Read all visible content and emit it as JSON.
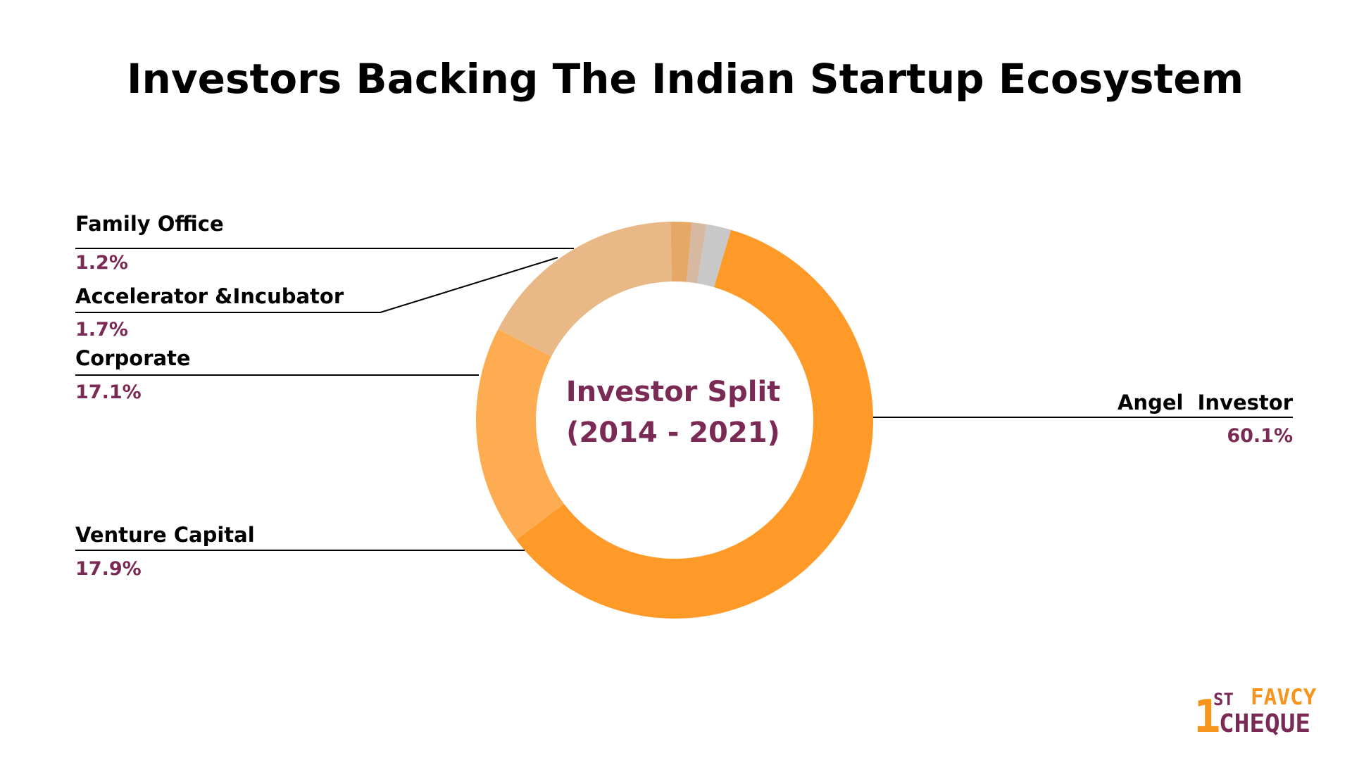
{
  "title": "Investors Backing The Indian Startup Ecosystem",
  "chart_data": {
    "type": "pie",
    "variant": "donut",
    "center_title": "Investor Split",
    "center_subtitle": "(2014 - 2021)",
    "legend": "leader-line labels",
    "slices": [
      {
        "label": "Angel  Investor",
        "value": 60.1,
        "value_label": "60.1%",
        "color": "#FF9A28",
        "label_side": "right"
      },
      {
        "label": "Venture Capital",
        "value": 17.9,
        "value_label": "17.9%",
        "color": "#FDAC52",
        "label_side": "left"
      },
      {
        "label": "Corporate",
        "value": 17.1,
        "value_label": "17.1%",
        "color": "#E8B986",
        "label_side": "left"
      },
      {
        "label": "Accelerator &Incubator",
        "value": 1.7,
        "value_label": "1.7%",
        "color": "#E6A866",
        "label_side": "left"
      },
      {
        "label": "Family Office",
        "value": 1.2,
        "value_label": "1.2%",
        "color": "#D6B9A0",
        "label_side": "left"
      },
      {
        "label": "",
        "value": 2.0,
        "value_label": "",
        "color": "#C8C8C8",
        "label_side": "none"
      }
    ]
  },
  "colors": {
    "title": "#000000",
    "label": "#000000",
    "value": "#7A2A55",
    "leader_line": "#000000",
    "logo_orange": "#F7941D",
    "logo_purple": "#7A2A55"
  },
  "logo": {
    "number": "1",
    "superscript": "ST",
    "brand": "FAVCY",
    "word": "CHEQUE"
  }
}
